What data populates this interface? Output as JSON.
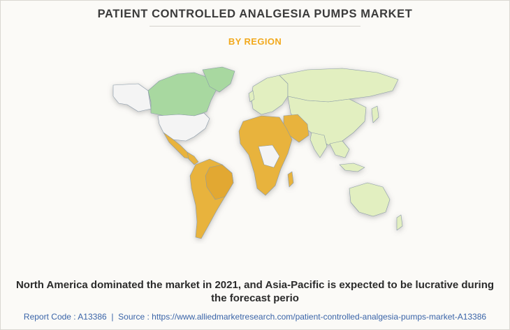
{
  "header": {
    "title": "PATIENT CONTROLLED ANALGESIA PUMPS MARKET",
    "subtitle": "BY REGION"
  },
  "map": {
    "regions": [
      {
        "name": "North America",
        "color": "#a8d8a0",
        "status": "dominant"
      },
      {
        "name": "United States",
        "color": "#f4f4f4"
      },
      {
        "name": "Latin America",
        "color": "#e8b33c"
      },
      {
        "name": "Europe",
        "color": "#e2efc0"
      },
      {
        "name": "Asia-Pacific",
        "color": "#e2efc0"
      },
      {
        "name": "Africa",
        "color": "#e8b33c"
      },
      {
        "name": "Middle East",
        "color": "#e8b33c"
      }
    ]
  },
  "caption": "North America dominated the market in 2021, and Asia-Pacific is expected to be lucrative during the forecast perio",
  "footer": {
    "report_code": "Report Code : A13386",
    "separator": "|",
    "source": "Source : https://www.alliedmarketresearch.com/patient-controlled-analgesia-pumps-market-A13386"
  }
}
